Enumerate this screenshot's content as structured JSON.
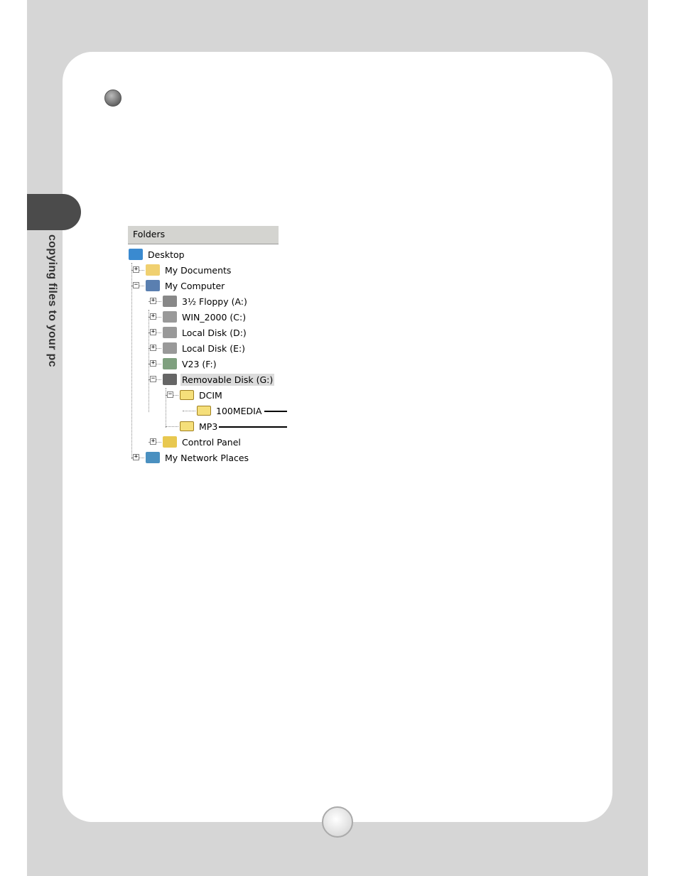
{
  "side_label": "copying files to your pc",
  "tree": {
    "header": "Folders",
    "items": [
      {
        "label": "Desktop",
        "icon": "desktop-icon",
        "level": 0,
        "toggle": "none"
      },
      {
        "label": "My Documents",
        "icon": "my-documents-icon",
        "level": 1,
        "toggle": "+"
      },
      {
        "label": "My Computer",
        "icon": "computer-icon",
        "level": 1,
        "toggle": "-"
      },
      {
        "label": "3½ Floppy (A:)",
        "icon": "floppy-drive-icon",
        "level": 2,
        "toggle": "+"
      },
      {
        "label": "WIN_2000 (C:)",
        "icon": "hard-disk-icon",
        "level": 2,
        "toggle": "+"
      },
      {
        "label": "Local Disk (D:)",
        "icon": "hard-disk-icon",
        "level": 2,
        "toggle": "+"
      },
      {
        "label": "Local Disk (E:)",
        "icon": "hard-disk-icon",
        "level": 2,
        "toggle": "+"
      },
      {
        "label": "V23 (F:)",
        "icon": "cd-drive-icon",
        "level": 2,
        "toggle": "+"
      },
      {
        "label": "Removable Disk (G:)",
        "icon": "removable-disk-icon",
        "level": 2,
        "toggle": "-",
        "selected": true
      },
      {
        "label": "DCIM",
        "icon": "folder-icon",
        "level": 3,
        "toggle": "-"
      },
      {
        "label": "100MEDIA",
        "icon": "folder-icon",
        "level": 4,
        "toggle": "none",
        "pointer": true
      },
      {
        "label": "MP3",
        "icon": "folder-icon",
        "level": 3,
        "toggle": "none",
        "pointer": true
      },
      {
        "label": "Control Panel",
        "icon": "control-panel-icon",
        "level": 2,
        "toggle": "+"
      },
      {
        "label": "My Network Places",
        "icon": "network-places-icon",
        "level": 1,
        "toggle": "+"
      }
    ]
  },
  "colors": {
    "page_bg": "#d6d6d6",
    "tab": "#4b4b4b",
    "folder": "#f5df7a",
    "selection": "#dcdcdc"
  }
}
